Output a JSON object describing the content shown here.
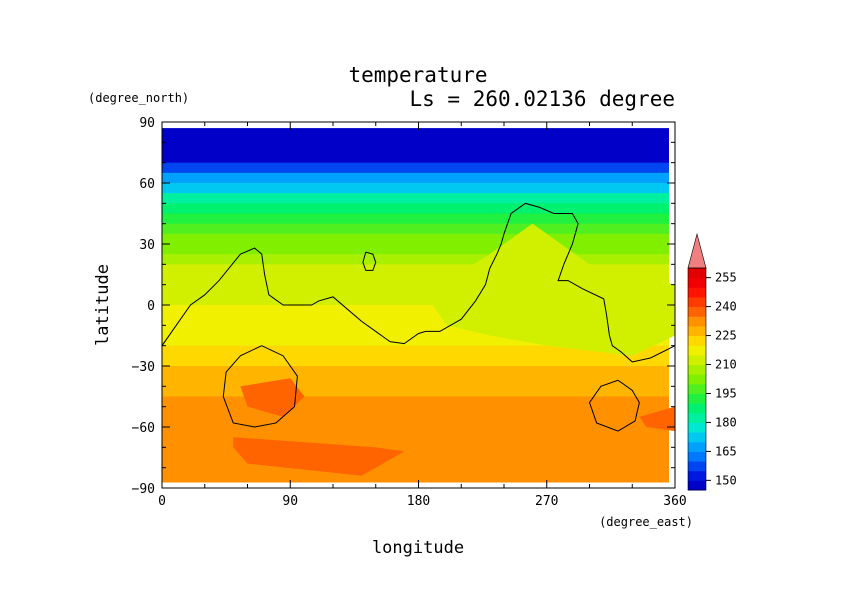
{
  "chart_data": {
    "type": "heatmap",
    "title": "temperature",
    "subtitle": "Ls = 260.02136 degree",
    "xlabel": "longitude",
    "ylabel": "latitude",
    "x_units": "(degree_east)",
    "y_units": "(degree_north)",
    "xlim": [
      0,
      360
    ],
    "ylim": [
      -90,
      90
    ],
    "x_ticks": [
      0,
      90,
      180,
      270,
      360
    ],
    "y_ticks": [
      90,
      60,
      30,
      0,
      -30,
      -60,
      -90
    ],
    "data_lat_range": [
      -87,
      87
    ],
    "colorbar": {
      "levels": [
        145,
        150,
        155,
        160,
        165,
        170,
        175,
        180,
        185,
        190,
        195,
        200,
        205,
        210,
        215,
        220,
        225,
        230,
        235,
        240,
        245,
        250,
        255,
        260
      ],
      "labels": [
        150,
        165,
        180,
        195,
        210,
        225,
        240,
        255
      ],
      "colors": [
        "#0000c8",
        "#0018e0",
        "#0046f0",
        "#0078ff",
        "#00a0ff",
        "#00c8f0",
        "#00e8d0",
        "#00f0a0",
        "#00f070",
        "#20f040",
        "#50f020",
        "#80f000",
        "#a8f000",
        "#d0f000",
        "#f0f000",
        "#ffd800",
        "#ffb400",
        "#ff9000",
        "#ff6400",
        "#ff3c00",
        "#ff1400",
        "#f00000",
        "#e00000"
      ],
      "extend_max_color": "#f08080"
    },
    "lat_profile": [
      {
        "lat": 87,
        "value": 146
      },
      {
        "lat": 75,
        "value": 147
      },
      {
        "lat": 70,
        "value": 152
      },
      {
        "lat": 65,
        "value": 160
      },
      {
        "lat": 60,
        "value": 170
      },
      {
        "lat": 55,
        "value": 178
      },
      {
        "lat": 50,
        "value": 184
      },
      {
        "lat": 45,
        "value": 189
      },
      {
        "lat": 40,
        "value": 194
      },
      {
        "lat": 35,
        "value": 198
      },
      {
        "lat": 30,
        "value": 202
      },
      {
        "lat": 25,
        "value": 206
      },
      {
        "lat": 20,
        "value": 209
      },
      {
        "lat": 10,
        "value": 213
      },
      {
        "lat": 0,
        "value": 215
      },
      {
        "lat": -10,
        "value": 218
      },
      {
        "lat": -20,
        "value": 221
      },
      {
        "lat": -30,
        "value": 227
      },
      {
        "lat": -45,
        "value": 231
      },
      {
        "lat": -60,
        "value": 232
      },
      {
        "lat": -87,
        "value": 233
      }
    ],
    "features": [
      {
        "name": "warm-region-south",
        "value": 237,
        "points": [
          [
            50,
            -65
          ],
          [
            150,
            -70
          ],
          [
            170,
            -72
          ],
          [
            140,
            -84
          ],
          [
            60,
            -78
          ],
          [
            50,
            -70
          ]
        ]
      },
      {
        "name": "warm-region-crater",
        "value": 237,
        "points": [
          [
            55,
            -40
          ],
          [
            90,
            -36
          ],
          [
            100,
            -45
          ],
          [
            85,
            -55
          ],
          [
            60,
            -50
          ]
        ]
      },
      {
        "name": "warm-region-east",
        "value": 237,
        "points": [
          [
            335,
            -55
          ],
          [
            360,
            -50
          ],
          [
            360,
            -62
          ],
          [
            340,
            -60
          ]
        ]
      },
      {
        "name": "cool-region-tharsis",
        "value": 210,
        "points": [
          [
            185,
            5
          ],
          [
            230,
            25
          ],
          [
            260,
            40
          ],
          [
            300,
            20
          ],
          [
            360,
            10
          ],
          [
            360,
            -15
          ],
          [
            330,
            -25
          ],
          [
            270,
            -20
          ],
          [
            230,
            -15
          ],
          [
            200,
            -10
          ]
        ]
      }
    ],
    "contour_lines": [
      {
        "name": "topography-contour-west",
        "points": [
          [
            0,
            -20
          ],
          [
            10,
            -10
          ],
          [
            20,
            0
          ],
          [
            30,
            5
          ],
          [
            40,
            12
          ],
          [
            55,
            25
          ],
          [
            65,
            28
          ],
          [
            70,
            25
          ],
          [
            72,
            15
          ],
          [
            75,
            5
          ],
          [
            85,
            0
          ],
          [
            105,
            0
          ],
          [
            110,
            2
          ],
          [
            120,
            4
          ],
          [
            130,
            -2
          ],
          [
            140,
            -8
          ],
          [
            150,
            -13
          ],
          [
            160,
            -18
          ],
          [
            170,
            -19
          ],
          [
            180,
            -14
          ],
          [
            185,
            -13
          ],
          [
            195,
            -13
          ],
          [
            210,
            -7
          ],
          [
            220,
            2
          ],
          [
            227,
            10
          ],
          [
            230,
            18
          ],
          [
            235,
            25
          ],
          [
            238,
            30
          ],
          [
            240,
            35
          ],
          [
            245,
            45
          ],
          [
            255,
            50
          ],
          [
            265,
            48
          ],
          [
            275,
            45
          ],
          [
            288,
            45
          ],
          [
            292,
            40
          ],
          [
            288,
            30
          ],
          [
            282,
            20
          ],
          [
            278,
            12
          ],
          [
            285,
            12
          ],
          [
            295,
            8
          ],
          [
            310,
            3
          ],
          [
            312,
            -5
          ],
          [
            314,
            -15
          ],
          [
            316,
            -20
          ],
          [
            322,
            -23
          ],
          [
            330,
            -28
          ],
          [
            343,
            -26
          ],
          [
            360,
            -20
          ]
        ]
      },
      {
        "name": "contour-ring-hellas",
        "points": [
          [
            70,
            -20
          ],
          [
            85,
            -25
          ],
          [
            95,
            -35
          ],
          [
            93,
            -50
          ],
          [
            80,
            -58
          ],
          [
            65,
            -60
          ],
          [
            50,
            -58
          ],
          [
            43,
            -45
          ],
          [
            45,
            -33
          ],
          [
            55,
            -25
          ],
          [
            70,
            -20
          ]
        ]
      },
      {
        "name": "contour-ring-argyre",
        "points": [
          [
            320,
            -37
          ],
          [
            330,
            -42
          ],
          [
            335,
            -48
          ],
          [
            332,
            -57
          ],
          [
            320,
            -62
          ],
          [
            305,
            -58
          ],
          [
            300,
            -48
          ],
          [
            308,
            -40
          ],
          [
            320,
            -37
          ]
        ]
      },
      {
        "name": "contour-ring-small",
        "points": [
          [
            143,
            26
          ],
          [
            148,
            25
          ],
          [
            150,
            21
          ],
          [
            148,
            17
          ],
          [
            143,
            17
          ],
          [
            141,
            21
          ],
          [
            143,
            26
          ]
        ]
      }
    ]
  }
}
